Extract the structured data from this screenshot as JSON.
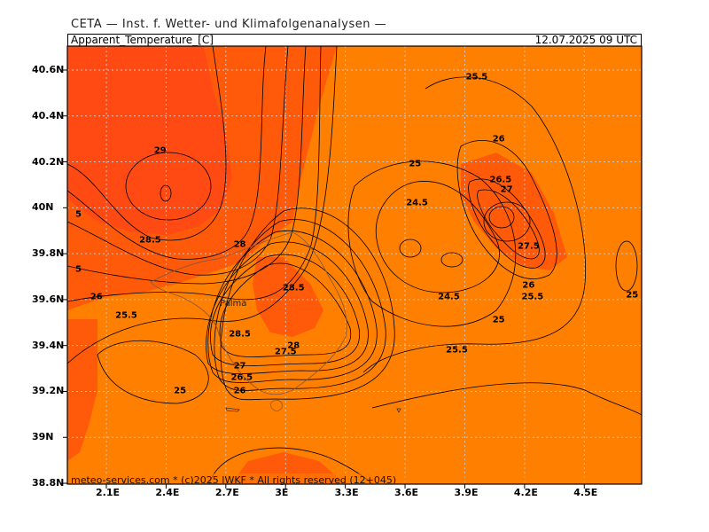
{
  "header": {
    "title": "CETA — Inst. f. Wetter- und Klimafolgenanalysen —",
    "parameter": "Apparent_Temperature_[C]",
    "valid_time": "12.07.2025 09 UTC"
  },
  "footer": {
    "credit": "meteo-services.com * (c)2025 IWKF * All rights reserved (12+045)"
  },
  "place_name": "Palma",
  "axes": {
    "lat_labels": [
      "40.6N",
      "40.4N",
      "40.2N",
      "40N",
      "39.8N",
      "39.6N",
      "39.4N",
      "39.2N",
      "39N",
      "38.8N"
    ],
    "lon_labels": [
      "2.1E",
      "2.4E",
      "2.7E",
      "3E",
      "3.3E",
      "3.6E",
      "3.9E",
      "4.2E",
      "4.5E"
    ]
  },
  "colors": {
    "base": "#ff7f00",
    "warm": "#ff5a0a",
    "hot": "#ff4a14",
    "grid": "#c8c8c8"
  },
  "contour_labels": [
    {
      "text": "29",
      "lat": 40.25,
      "lon": 2.37
    },
    {
      "text": "28.5",
      "lat": 39.86,
      "lon": 2.32
    },
    {
      "text": "28",
      "lat": 39.84,
      "lon": 2.77
    },
    {
      "text": "28.5",
      "lat": 39.65,
      "lon": 3.04
    },
    {
      "text": "28.5",
      "lat": 39.45,
      "lon": 2.77
    },
    {
      "text": "28",
      "lat": 39.4,
      "lon": 3.04
    },
    {
      "text": "27.5",
      "lat": 39.37,
      "lon": 3.0
    },
    {
      "text": "27",
      "lat": 39.31,
      "lon": 2.77
    },
    {
      "text": "26.5",
      "lat": 39.26,
      "lon": 2.78
    },
    {
      "text": "26",
      "lat": 39.2,
      "lon": 2.77
    },
    {
      "text": "26",
      "lat": 39.61,
      "lon": 2.05
    },
    {
      "text": "25.5",
      "lat": 39.53,
      "lon": 2.2
    },
    {
      "text": "25",
      "lat": 39.2,
      "lon": 2.47
    },
    {
      "text": "5",
      "lat": 39.97,
      "lon": 1.96
    },
    {
      "text": "5",
      "lat": 39.73,
      "lon": 1.96
    },
    {
      "text": "25",
      "lat": 40.19,
      "lon": 3.65
    },
    {
      "text": "24.5",
      "lat": 40.02,
      "lon": 3.66
    },
    {
      "text": "24.5",
      "lat": 39.61,
      "lon": 3.82
    },
    {
      "text": "25.5",
      "lat": 40.57,
      "lon": 3.96
    },
    {
      "text": "26",
      "lat": 40.3,
      "lon": 4.07
    },
    {
      "text": "26.5",
      "lat": 40.12,
      "lon": 4.08
    },
    {
      "text": "27",
      "lat": 40.08,
      "lon": 4.11
    },
    {
      "text": "27.5",
      "lat": 39.83,
      "lon": 4.22
    },
    {
      "text": "26",
      "lat": 39.66,
      "lon": 4.22
    },
    {
      "text": "25.5",
      "lat": 39.61,
      "lon": 4.24
    },
    {
      "text": "25",
      "lat": 39.51,
      "lon": 4.07
    },
    {
      "text": "25.5",
      "lat": 39.38,
      "lon": 3.86
    },
    {
      "text": "25",
      "lat": 39.62,
      "lon": 4.74
    }
  ]
}
